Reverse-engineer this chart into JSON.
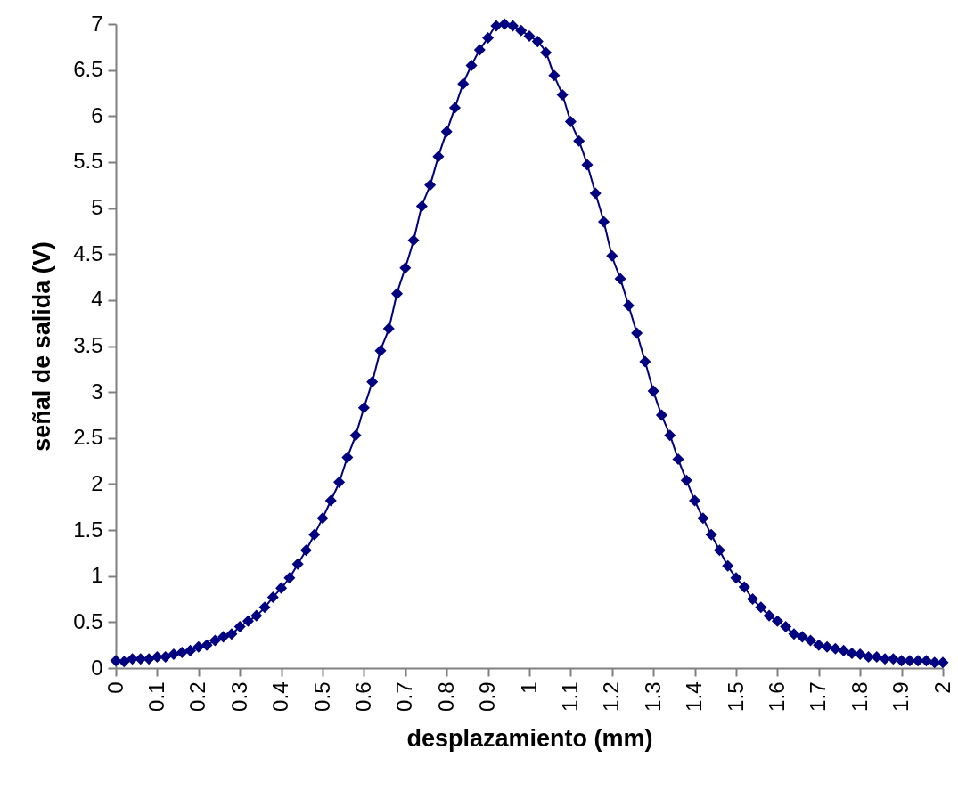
{
  "chart_data": {
    "type": "line",
    "xlabel": "desplazamiento (mm)",
    "ylabel": "señal de salida (V)",
    "xlim": [
      0,
      2
    ],
    "xticks": [
      0,
      0.1,
      0.2,
      0.3,
      0.4,
      0.5,
      0.6,
      0.7,
      0.8,
      0.9,
      1,
      1.1,
      1.2,
      1.3,
      1.4,
      1.5,
      1.6,
      1.7,
      1.8,
      1.9,
      2
    ],
    "ylim": [
      0,
      7
    ],
    "yticks": [
      0,
      0.5,
      1,
      1.5,
      2,
      2.5,
      3,
      3.5,
      4,
      4.5,
      5,
      5.5,
      6,
      6.5,
      7
    ],
    "grid": false,
    "marker": "diamond",
    "line_style": "solid",
    "series": [
      {
        "color": "#000080",
        "x": [
          0,
          0.02,
          0.04,
          0.06,
          0.08,
          0.1,
          0.12,
          0.14,
          0.16,
          0.18,
          0.2,
          0.22,
          0.24,
          0.26,
          0.28,
          0.3,
          0.32,
          0.34,
          0.36,
          0.38,
          0.4,
          0.42,
          0.44,
          0.46,
          0.48,
          0.5,
          0.52,
          0.54,
          0.56,
          0.58,
          0.6,
          0.62,
          0.64,
          0.66,
          0.68,
          0.7,
          0.72,
          0.74,
          0.76,
          0.78,
          0.8,
          0.82,
          0.84,
          0.86,
          0.88,
          0.9,
          0.92,
          0.94,
          0.96,
          0.98,
          1,
          1.02,
          1.04,
          1.06,
          1.08,
          1.1,
          1.12,
          1.14,
          1.16,
          1.18,
          1.2,
          1.22,
          1.24,
          1.26,
          1.28,
          1.3,
          1.32,
          1.34,
          1.36,
          1.38,
          1.4,
          1.42,
          1.44,
          1.46,
          1.48,
          1.5,
          1.52,
          1.54,
          1.56,
          1.58,
          1.6,
          1.62,
          1.64,
          1.66,
          1.68,
          1.7,
          1.72,
          1.74,
          1.76,
          1.78,
          1.8,
          1.82,
          1.84,
          1.86,
          1.88,
          1.9,
          1.92,
          1.94,
          1.96,
          1.98,
          2
        ],
        "values": [
          0.08,
          0.07,
          0.1,
          0.1,
          0.1,
          0.12,
          0.12,
          0.15,
          0.17,
          0.19,
          0.23,
          0.25,
          0.3,
          0.34,
          0.37,
          0.45,
          0.51,
          0.57,
          0.66,
          0.77,
          0.87,
          0.98,
          1.13,
          1.28,
          1.45,
          1.63,
          1.82,
          2.02,
          2.29,
          2.53,
          2.83,
          3.11,
          3.45,
          3.69,
          4.07,
          4.35,
          4.65,
          5.02,
          5.25,
          5.56,
          5.83,
          6.09,
          6.35,
          6.55,
          6.72,
          6.85,
          6.98,
          7,
          6.98,
          6.93,
          6.87,
          6.81,
          6.69,
          6.44,
          6.23,
          5.94,
          5.73,
          5.47,
          5.16,
          4.85,
          4.48,
          4.23,
          3.94,
          3.64,
          3.33,
          3.01,
          2.75,
          2.53,
          2.27,
          2.04,
          1.82,
          1.63,
          1.45,
          1.28,
          1.11,
          0.98,
          0.88,
          0.75,
          0.66,
          0.57,
          0.51,
          0.45,
          0.37,
          0.34,
          0.3,
          0.25,
          0.23,
          0.21,
          0.19,
          0.16,
          0.15,
          0.12,
          0.12,
          0.1,
          0.1,
          0.08,
          0.08,
          0.08,
          0.08,
          0.06,
          0.06
        ]
      }
    ]
  }
}
